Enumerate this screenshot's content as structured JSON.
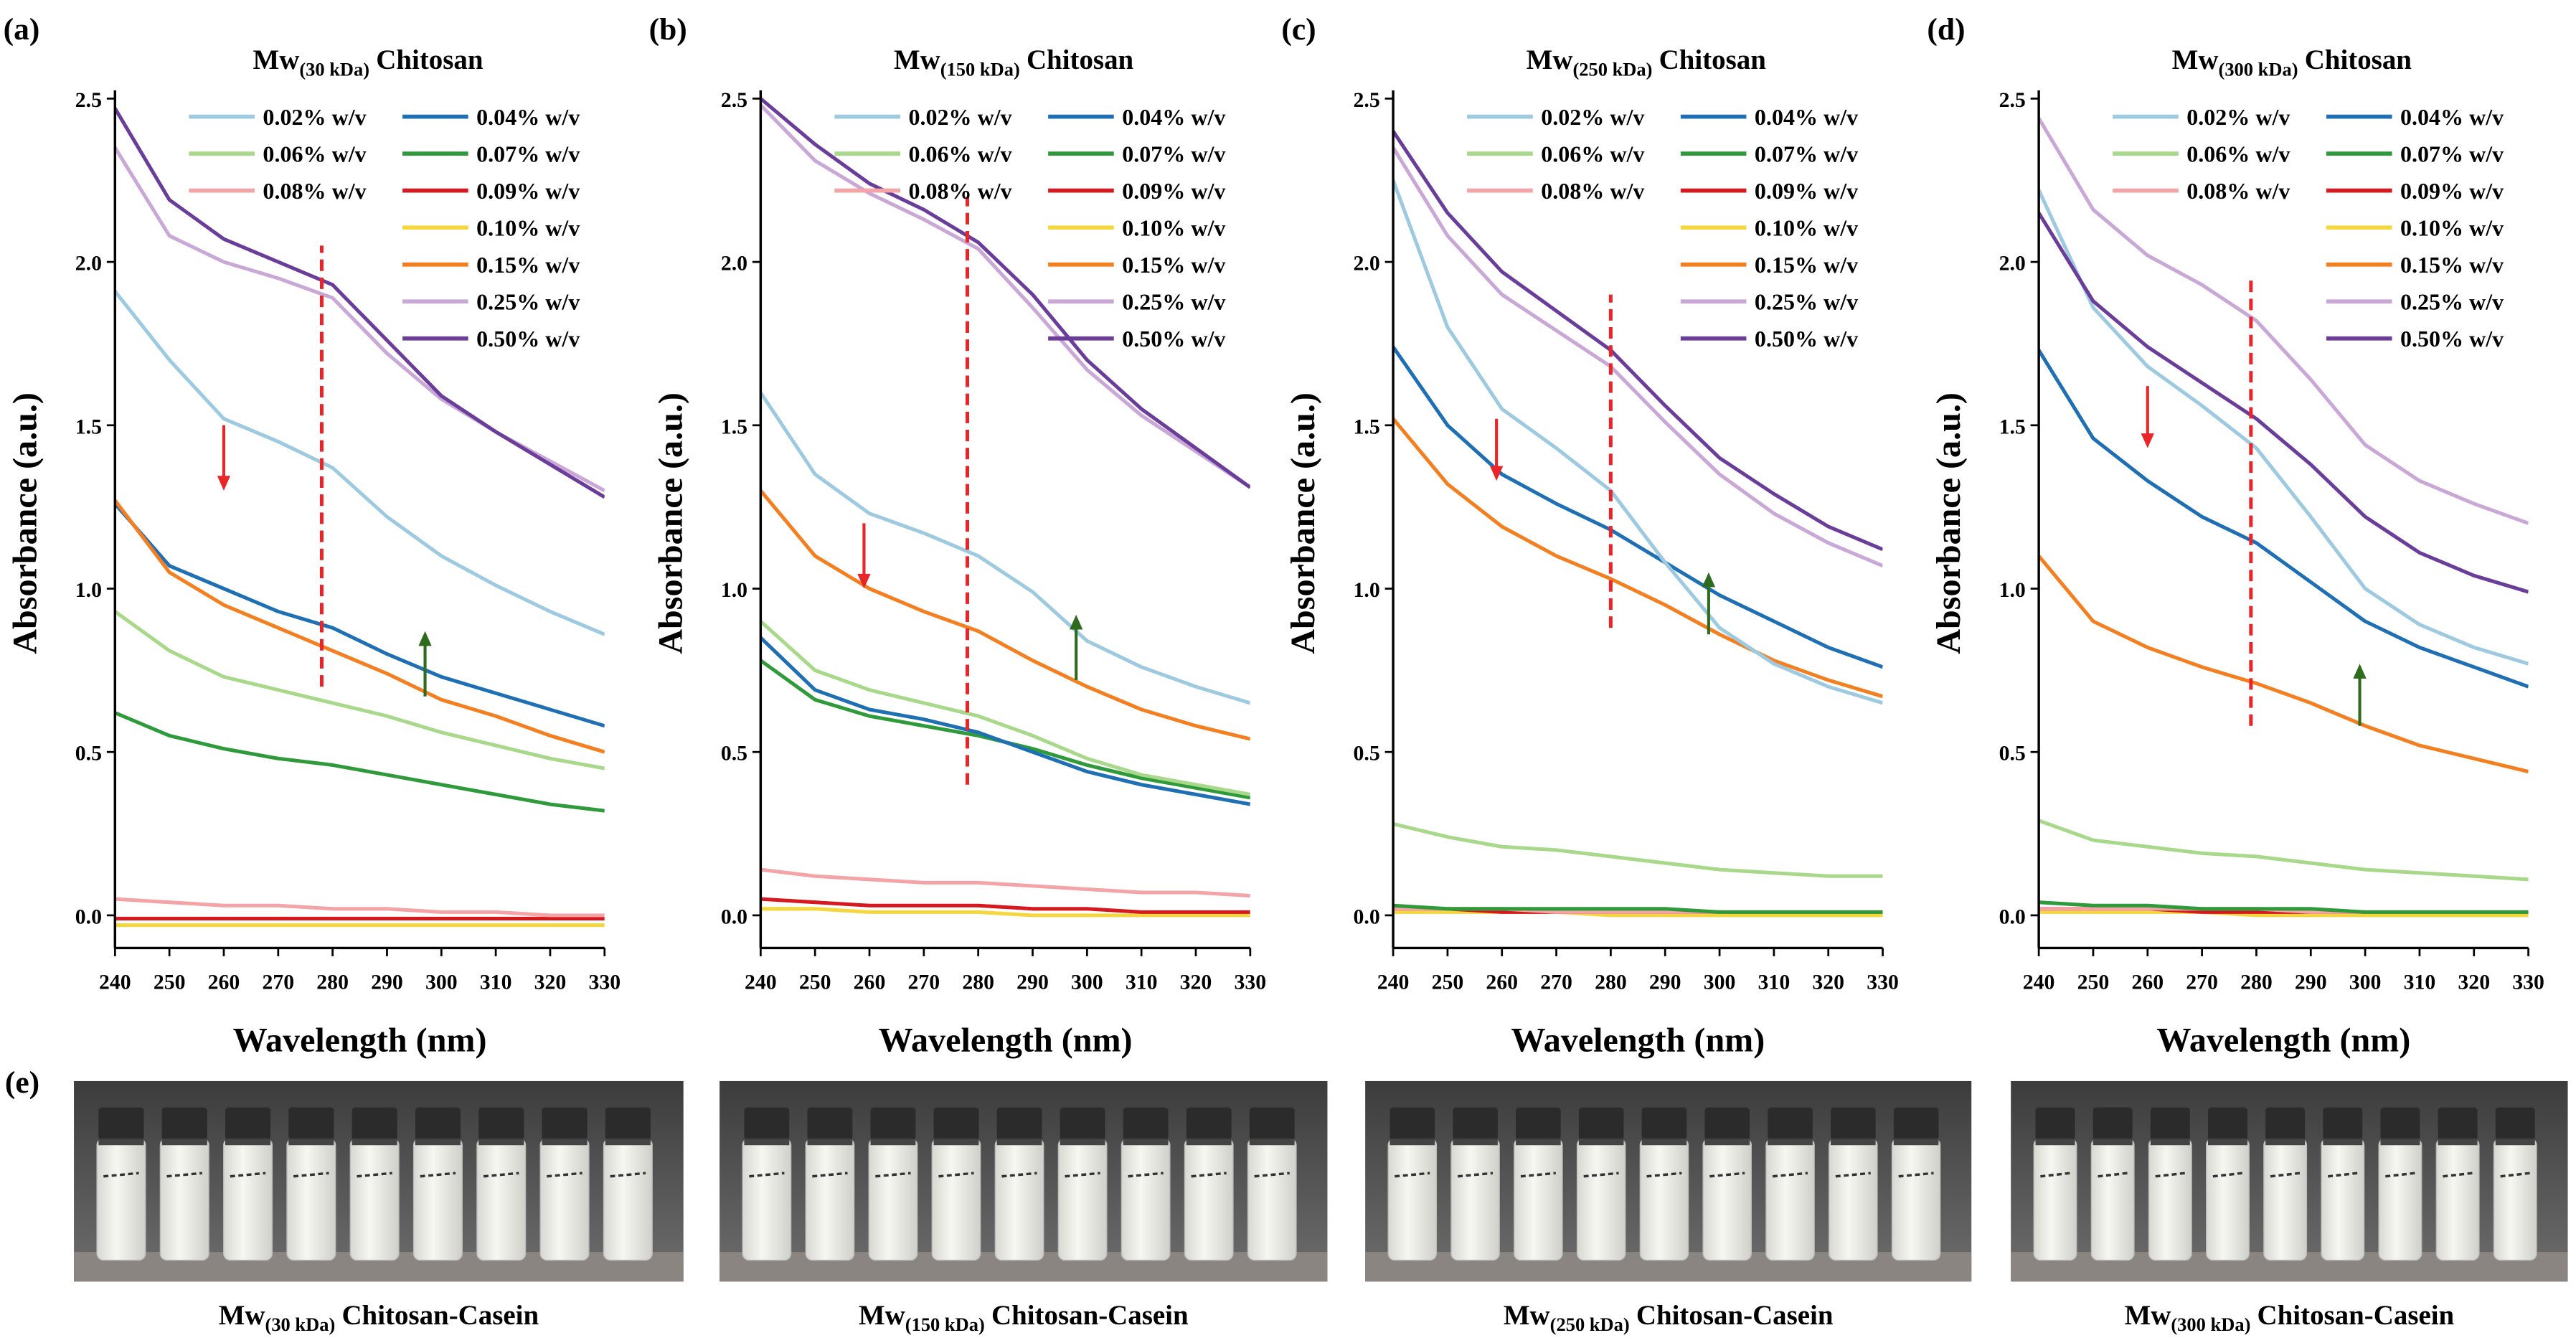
{
  "chart_data": [
    {
      "type": "line",
      "panel_label": "(a)",
      "title": [
        "Mw",
        "(30 kDa)",
        "Chitosan"
      ],
      "x_label": "Wavelength (nm)",
      "y_label": "Absorbance (a.u.)",
      "x": [
        240,
        250,
        260,
        270,
        280,
        290,
        300,
        310,
        320,
        330
      ],
      "xlim": [
        240,
        330
      ],
      "ylim": [
        -0.1,
        2.5
      ],
      "xticks": [
        240,
        250,
        260,
        270,
        280,
        290,
        300,
        310,
        320,
        330
      ],
      "yticks": [
        {
          "value": 0,
          "label": "0.0"
        },
        0.5,
        {
          "value": 1,
          "label": "1.0"
        },
        1.5,
        {
          "value": 2,
          "label": "2.0"
        },
        2.5
      ],
      "series": [
        {
          "name": "0.02% w/v",
          "color": "#9ecae1",
          "values": [
            1.91,
            1.7,
            1.52,
            1.45,
            1.37,
            1.22,
            1.1,
            1.01,
            0.93,
            0.86
          ]
        },
        {
          "name": "0.04% w/v",
          "color": "#1f6fb4",
          "values": [
            1.26,
            1.07,
            1.0,
            0.93,
            0.88,
            0.8,
            0.73,
            0.68,
            0.63,
            0.58
          ]
        },
        {
          "name": "0.06% w/v",
          "color": "#a8d88a",
          "values": [
            0.93,
            0.81,
            0.73,
            0.69,
            0.65,
            0.61,
            0.56,
            0.52,
            0.48,
            0.45
          ]
        },
        {
          "name": "0.07% w/v",
          "color": "#2e9a3a",
          "values": [
            0.62,
            0.55,
            0.51,
            0.48,
            0.46,
            0.43,
            0.4,
            0.37,
            0.34,
            0.32
          ]
        },
        {
          "name": "0.08% w/v",
          "color": "#f4a3a6",
          "values": [
            0.05,
            0.04,
            0.03,
            0.03,
            0.02,
            0.02,
            0.01,
            0.01,
            0,
            0
          ]
        },
        {
          "name": "0.09% w/v",
          "color": "#d6181f",
          "values": [
            -0.01,
            -0.01,
            -0.01,
            -0.01,
            -0.01,
            -0.01,
            -0.01,
            -0.01,
            -0.01,
            -0.01
          ]
        },
        {
          "name": "0.10% w/v",
          "color": "#f5d63d",
          "values": [
            -0.03,
            -0.03,
            -0.03,
            -0.03,
            -0.03,
            -0.03,
            -0.03,
            -0.03,
            -0.03,
            -0.03
          ]
        },
        {
          "name": "0.15% w/v",
          "color": "#f47f20",
          "values": [
            1.27,
            1.05,
            0.95,
            0.88,
            0.81,
            0.74,
            0.66,
            0.61,
            0.55,
            0.5
          ]
        },
        {
          "name": "0.25% w/v",
          "color": "#c9a7d6",
          "values": [
            2.35,
            2.08,
            2.0,
            1.95,
            1.89,
            1.72,
            1.58,
            1.48,
            1.39,
            1.3
          ]
        },
        {
          "name": "0.50% w/v",
          "color": "#6a3d9a",
          "values": [
            2.47,
            2.19,
            2.07,
            2.0,
            1.93,
            1.76,
            1.59,
            1.48,
            1.38,
            1.28
          ]
        }
      ],
      "vline": {
        "x": 278,
        "y": [
          0.7,
          2.05
        ],
        "color": "#e8262a"
      },
      "arrows": [
        {
          "x": 260,
          "from": 1.5,
          "to": 1.3,
          "color": "#e8262a"
        },
        {
          "x": 297,
          "from": 0.67,
          "to": 0.87,
          "color": "#2e6b1e"
        }
      ]
    },
    {
      "type": "line",
      "panel_label": "(b)",
      "title": [
        "Mw",
        "(150 kDa)",
        "Chitosan"
      ],
      "x_label": "Wavelength (nm)",
      "y_label": "Absorbance (a.u.)",
      "x": [
        240,
        250,
        260,
        270,
        280,
        290,
        300,
        310,
        320,
        330
      ],
      "xlim": [
        240,
        330
      ],
      "ylim": [
        -0.1,
        2.5
      ],
      "xticks": [
        240,
        250,
        260,
        270,
        280,
        290,
        300,
        310,
        320,
        330
      ],
      "yticks": [
        {
          "value": 0,
          "label": "0.0"
        },
        0.5,
        {
          "value": 1,
          "label": "1.0"
        },
        1.5,
        {
          "value": 2,
          "label": "2.0"
        },
        2.5
      ],
      "series": [
        {
          "name": "0.02% w/v",
          "color": "#9ecae1",
          "values": [
            1.6,
            1.35,
            1.23,
            1.17,
            1.1,
            0.99,
            0.84,
            0.76,
            0.7,
            0.65
          ]
        },
        {
          "name": "0.04% w/v",
          "color": "#1f6fb4",
          "values": [
            0.85,
            0.69,
            0.63,
            0.6,
            0.56,
            0.5,
            0.44,
            0.4,
            0.37,
            0.34
          ]
        },
        {
          "name": "0.06% w/v",
          "color": "#a8d88a",
          "values": [
            0.9,
            0.75,
            0.69,
            0.65,
            0.61,
            0.55,
            0.48,
            0.43,
            0.4,
            0.37
          ]
        },
        {
          "name": "0.07% w/v",
          "color": "#2e9a3a",
          "values": [
            0.78,
            0.66,
            0.61,
            0.58,
            0.55,
            0.51,
            0.46,
            0.42,
            0.39,
            0.36
          ]
        },
        {
          "name": "0.08% w/v",
          "color": "#f4a3a6",
          "values": [
            0.14,
            0.12,
            0.11,
            0.1,
            0.1,
            0.09,
            0.08,
            0.07,
            0.07,
            0.06
          ]
        },
        {
          "name": "0.09% w/v",
          "color": "#d6181f",
          "values": [
            0.05,
            0.04,
            0.03,
            0.03,
            0.03,
            0.02,
            0.02,
            0.01,
            0.01,
            0.01
          ]
        },
        {
          "name": "0.10% w/v",
          "color": "#f5d63d",
          "values": [
            0.02,
            0.02,
            0.01,
            0.01,
            0.01,
            0,
            0,
            0,
            0,
            0
          ]
        },
        {
          "name": "0.15% w/v",
          "color": "#f47f20",
          "values": [
            1.3,
            1.1,
            1.0,
            0.93,
            0.87,
            0.78,
            0.7,
            0.63,
            0.58,
            0.54
          ]
        },
        {
          "name": "0.25% w/v",
          "color": "#c9a7d6",
          "values": [
            2.48,
            2.31,
            2.21,
            2.13,
            2.04,
            1.86,
            1.67,
            1.53,
            1.42,
            1.31
          ]
        },
        {
          "name": "0.50% w/v",
          "color": "#6a3d9a",
          "values": [
            2.5,
            2.36,
            2.24,
            2.16,
            2.06,
            1.9,
            1.7,
            1.55,
            1.43,
            1.31
          ]
        }
      ],
      "vline": {
        "x": 278,
        "y": [
          0.4,
          2.2
        ],
        "color": "#e8262a"
      },
      "arrows": [
        {
          "x": 259,
          "from": 1.2,
          "to": 1.0,
          "color": "#e8262a"
        },
        {
          "x": 298,
          "from": 0.72,
          "to": 0.92,
          "color": "#2e6b1e"
        }
      ]
    },
    {
      "type": "line",
      "panel_label": "(c)",
      "title": [
        "Mw",
        "(250 kDa)",
        "Chitosan"
      ],
      "x_label": "Wavelength (nm)",
      "y_label": "Absorbance (a.u.)",
      "x": [
        240,
        250,
        260,
        270,
        280,
        290,
        300,
        310,
        320,
        330
      ],
      "xlim": [
        240,
        330
      ],
      "ylim": [
        -0.1,
        2.5
      ],
      "xticks": [
        240,
        250,
        260,
        270,
        280,
        290,
        300,
        310,
        320,
        330
      ],
      "yticks": [
        {
          "value": 0,
          "label": "0.0"
        },
        0.5,
        {
          "value": 1,
          "label": "1.0"
        },
        1.5,
        {
          "value": 2,
          "label": "2.0"
        },
        2.5
      ],
      "series": [
        {
          "name": "0.02% w/v",
          "color": "#9ecae1",
          "values": [
            2.25,
            1.8,
            1.55,
            1.43,
            1.3,
            1.08,
            0.88,
            0.77,
            0.7,
            0.65
          ]
        },
        {
          "name": "0.04% w/v",
          "color": "#1f6fb4",
          "values": [
            1.74,
            1.5,
            1.35,
            1.26,
            1.18,
            1.08,
            0.98,
            0.9,
            0.82,
            0.76
          ]
        },
        {
          "name": "0.06% w/v",
          "color": "#a8d88a",
          "values": [
            0.28,
            0.24,
            0.21,
            0.2,
            0.18,
            0.16,
            0.14,
            0.13,
            0.12,
            0.12
          ]
        },
        {
          "name": "0.07% w/v",
          "color": "#2e9a3a",
          "values": [
            0.03,
            0.02,
            0.02,
            0.02,
            0.02,
            0.02,
            0.01,
            0.01,
            0.01,
            0.01
          ]
        },
        {
          "name": "0.08% w/v",
          "color": "#f4a3a6",
          "values": [
            0.02,
            0.02,
            0.02,
            0.01,
            0.01,
            0.01,
            0.01,
            0.01,
            0.01,
            0.01
          ]
        },
        {
          "name": "0.09% w/v",
          "color": "#d6181f",
          "values": [
            0.02,
            0.02,
            0.01,
            0.01,
            0.01,
            0.01,
            0.01,
            0.01,
            0.01,
            0.01
          ]
        },
        {
          "name": "0.10% w/v",
          "color": "#f5d63d",
          "values": [
            0.01,
            0.01,
            0.01,
            0.01,
            0,
            0,
            0,
            0,
            0,
            0
          ]
        },
        {
          "name": "0.15% w/v",
          "color": "#f47f20",
          "values": [
            1.52,
            1.32,
            1.19,
            1.1,
            1.03,
            0.95,
            0.86,
            0.78,
            0.72,
            0.67
          ]
        },
        {
          "name": "0.25% w/v",
          "color": "#c9a7d6",
          "values": [
            2.35,
            2.08,
            1.9,
            1.79,
            1.68,
            1.51,
            1.35,
            1.23,
            1.14,
            1.07
          ]
        },
        {
          "name": "0.50% w/v",
          "color": "#6a3d9a",
          "values": [
            2.4,
            2.15,
            1.97,
            1.85,
            1.73,
            1.56,
            1.4,
            1.29,
            1.19,
            1.12
          ]
        }
      ],
      "vline": {
        "x": 280,
        "y": [
          0.88,
          1.9
        ],
        "color": "#e8262a"
      },
      "arrows": [
        {
          "x": 259,
          "from": 1.52,
          "to": 1.33,
          "color": "#e8262a"
        },
        {
          "x": 298,
          "from": 0.86,
          "to": 1.05,
          "color": "#2e6b1e"
        }
      ]
    },
    {
      "type": "line",
      "panel_label": "(d)",
      "title": [
        "Mw",
        "(300 kDa)",
        "Chitosan"
      ],
      "x_label": "Wavelength (nm)",
      "y_label": "Absorbance (a.u.)",
      "x": [
        240,
        250,
        260,
        270,
        280,
        290,
        300,
        310,
        320,
        330
      ],
      "xlim": [
        240,
        330
      ],
      "ylim": [
        -0.1,
        2.5
      ],
      "xticks": [
        240,
        250,
        260,
        270,
        280,
        290,
        300,
        310,
        320,
        330
      ],
      "yticks": [
        {
          "value": 0,
          "label": "0.0"
        },
        0.5,
        {
          "value": 1,
          "label": "1.0"
        },
        1.5,
        {
          "value": 2,
          "label": "2.0"
        },
        2.5
      ],
      "series": [
        {
          "name": "0.02% w/v",
          "color": "#9ecae1",
          "values": [
            2.22,
            1.86,
            1.68,
            1.56,
            1.43,
            1.22,
            1.0,
            0.89,
            0.82,
            0.77
          ]
        },
        {
          "name": "0.04% w/v",
          "color": "#1f6fb4",
          "values": [
            1.73,
            1.46,
            1.33,
            1.22,
            1.14,
            1.02,
            0.9,
            0.82,
            0.76,
            0.7
          ]
        },
        {
          "name": "0.06% w/v",
          "color": "#a8d88a",
          "values": [
            0.29,
            0.23,
            0.21,
            0.19,
            0.18,
            0.16,
            0.14,
            0.13,
            0.12,
            0.11
          ]
        },
        {
          "name": "0.07% w/v",
          "color": "#2e9a3a",
          "values": [
            0.04,
            0.03,
            0.03,
            0.02,
            0.02,
            0.02,
            0.01,
            0.01,
            0.01,
            0.01
          ]
        },
        {
          "name": "0.08% w/v",
          "color": "#f4a3a6",
          "values": [
            0.02,
            0.02,
            0.02,
            0.02,
            0.02,
            0.01,
            0.01,
            0.01,
            0.01,
            0.01
          ]
        },
        {
          "name": "0.09% w/v",
          "color": "#d6181f",
          "values": [
            0.02,
            0.02,
            0.02,
            0.01,
            0.01,
            0.01,
            0.01,
            0.01,
            0.01,
            0.01
          ]
        },
        {
          "name": "0.10% w/v",
          "color": "#f5d63d",
          "values": [
            0.01,
            0.01,
            0.01,
            0.01,
            0,
            0,
            0,
            0,
            0,
            0
          ]
        },
        {
          "name": "0.15% w/v",
          "color": "#f47f20",
          "values": [
            1.1,
            0.9,
            0.82,
            0.76,
            0.71,
            0.65,
            0.58,
            0.52,
            0.48,
            0.44
          ]
        },
        {
          "name": "0.25% w/v",
          "color": "#c9a7d6",
          "values": [
            2.44,
            2.16,
            2.02,
            1.93,
            1.82,
            1.64,
            1.44,
            1.33,
            1.26,
            1.2
          ]
        },
        {
          "name": "0.50% w/v",
          "color": "#6a3d9a",
          "values": [
            2.15,
            1.88,
            1.74,
            1.63,
            1.52,
            1.38,
            1.22,
            1.11,
            1.04,
            0.99
          ]
        }
      ],
      "vline": {
        "x": 279,
        "y": [
          0.58,
          1.95
        ],
        "color": "#e8262a"
      },
      "arrows": [
        {
          "x": 260,
          "from": 1.62,
          "to": 1.43,
          "color": "#e8262a"
        },
        {
          "x": 299,
          "from": 0.58,
          "to": 0.77,
          "color": "#2e6b1e"
        }
      ]
    }
  ],
  "photos": {
    "label": "(e)",
    "captions": [
      [
        "Mw",
        "(30 kDa)",
        "Chitosan-Casein"
      ],
      [
        "Mw",
        "(150 kDa)",
        "Chitosan-Casein"
      ],
      [
        "Mw",
        "(250 kDa)",
        "Chitosan-Casein"
      ],
      [
        "Mw",
        "(300 kDa)",
        "Chitosan-Casein"
      ]
    ]
  }
}
